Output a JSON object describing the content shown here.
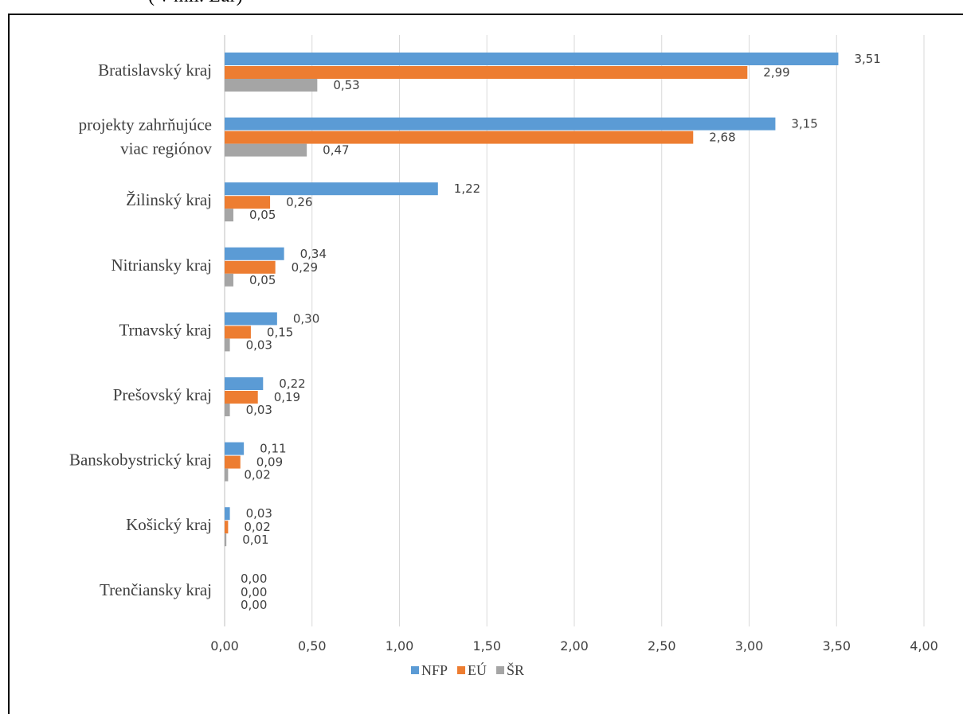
{
  "caption": "( v mil. Eur)",
  "chart_data": {
    "type": "bar",
    "orientation": "horizontal",
    "categories": [
      "Bratislavský kraj",
      "projekty zahrňujúce viac regiónov",
      "Žilinský kraj",
      "Nitriansky kraj",
      "Trnavský kraj",
      "Prešovský kraj",
      "Banskobystrický kraj",
      "Košický kraj",
      "Trenčiansky kraj"
    ],
    "series": [
      {
        "name": "NFP",
        "color": "#5B9BD5",
        "values": [
          3.51,
          3.15,
          1.22,
          0.34,
          0.3,
          0.22,
          0.11,
          0.03,
          0.0
        ]
      },
      {
        "name": "EÚ",
        "color": "#ED7D31",
        "values": [
          2.99,
          2.68,
          0.26,
          0.29,
          0.15,
          0.19,
          0.09,
          0.02,
          0.0
        ]
      },
      {
        "name": "ŠR",
        "color": "#A5A5A5",
        "values": [
          0.53,
          0.47,
          0.05,
          0.05,
          0.03,
          0.03,
          0.02,
          0.01,
          0.0
        ]
      }
    ],
    "xlim": [
      0,
      4
    ],
    "xticks": [
      0,
      0.5,
      1,
      1.5,
      2,
      2.5,
      3,
      3.5,
      4
    ],
    "xtick_labels": [
      "0,00",
      "0,50",
      "1,00",
      "1,50",
      "2,00",
      "2,50",
      "3,00",
      "3,50",
      "4,00"
    ],
    "data_labels": [
      [
        "3,51",
        "2,99",
        "0,53"
      ],
      [
        "3,15",
        "2,68",
        "0,47"
      ],
      [
        "1,22",
        "0,26",
        "0,05"
      ],
      [
        "0,34",
        "0,29",
        "0,05"
      ],
      [
        "0,30",
        "0,15",
        "0,03"
      ],
      [
        "0,22",
        "0,19",
        "0,03"
      ],
      [
        "0,11",
        "0,09",
        "0,02"
      ],
      [
        "0,03",
        "0,02",
        "0,01"
      ],
      [
        "0,00",
        "0,00",
        "0,00"
      ]
    ],
    "grid": "vertical",
    "legend_position": "bottom"
  }
}
